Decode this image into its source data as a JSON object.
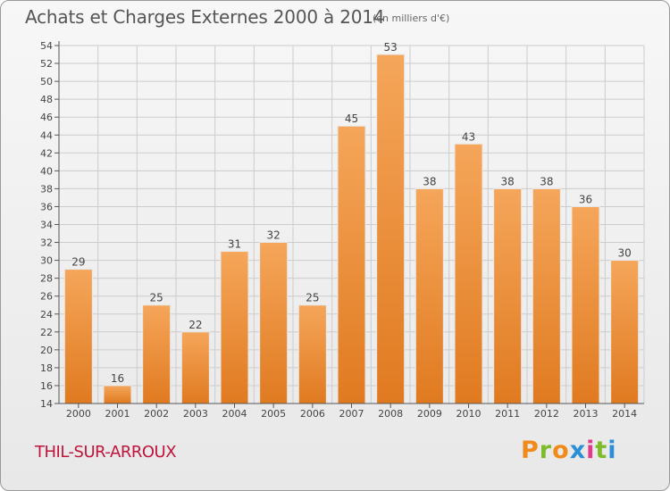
{
  "header": {
    "title": "Achats et Charges Externes 2000 à 2014",
    "unit": "(en milliers d'€)"
  },
  "footer": {
    "commune": "THIL-SUR-ARROUX",
    "logo_text": "Proxiti"
  },
  "colors": {
    "bar_top": "#f5a65a",
    "bar_bottom": "#e07a20",
    "commune_text": "#c0143c",
    "grid": "#cccccc"
  },
  "chart_data": {
    "type": "bar",
    "categories": [
      "2000",
      "2001",
      "2002",
      "2003",
      "2004",
      "2005",
      "2006",
      "2007",
      "2008",
      "2009",
      "2010",
      "2011",
      "2012",
      "2013",
      "2014"
    ],
    "values": [
      29,
      16,
      25,
      22,
      31,
      32,
      25,
      45,
      53,
      38,
      43,
      38,
      38,
      36,
      30
    ],
    "title": "Achats et Charges Externes 2000 à 2014",
    "unit": "(en milliers d'€)",
    "xlabel": "",
    "ylabel": "",
    "ylim": [
      14,
      54
    ],
    "yticks": [
      14,
      16,
      18,
      20,
      22,
      24,
      26,
      28,
      30,
      32,
      34,
      36,
      38,
      40,
      42,
      44,
      46,
      48,
      50,
      52,
      54
    ],
    "grid": true,
    "data_labels": true
  }
}
